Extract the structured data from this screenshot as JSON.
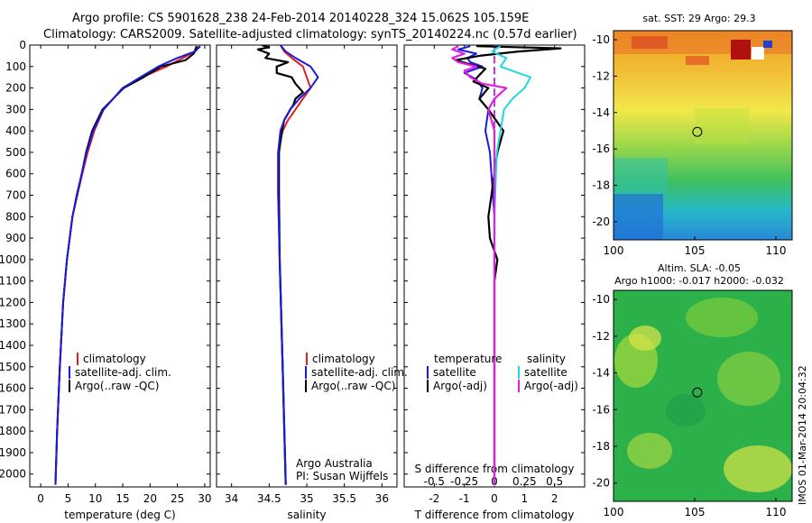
{
  "header": {
    "line1": "Argo profile: CS 5901628_238 24-Feb-2014 20140228_324 15.062S 105.159E",
    "line2": "Climatology: CARS2009. Satellite-adjusted climatology: synTS_20140224.nc (0.57d earlier)"
  },
  "colors": {
    "climatology": "#e02020",
    "satellite": "#1a1ae0",
    "argo": "#000000",
    "sat_salinity": "#22d8e0",
    "argo_salinity": "#e020e0"
  },
  "chart_data": [
    {
      "type": "line",
      "title": "",
      "xlabel": "temperature (deg C)",
      "ylabel": "",
      "xlim": [
        -2,
        31
      ],
      "ylim": [
        2060,
        0
      ],
      "xticks": [
        "0",
        "5",
        "10",
        "15",
        "20",
        "25",
        "30"
      ],
      "yticks": [
        "0",
        "100",
        "200",
        "300",
        "400",
        "500",
        "600",
        "700",
        "800",
        "900",
        "1000",
        "1100",
        "1200",
        "1300",
        "1400",
        "1500",
        "1600",
        "1700",
        "1800",
        "1900",
        "2000"
      ],
      "legend": [
        "climatology",
        "satellite-adj. clim.",
        "Argo(..raw -QC)"
      ],
      "series": [
        {
          "name": "climatology",
          "depth": [
            5,
            30,
            60,
            100,
            150,
            200,
            300,
            400,
            500,
            600,
            700,
            800,
            1000,
            1200,
            1500,
            1800,
            2050
          ],
          "values": [
            28.8,
            28.3,
            26,
            23,
            18.5,
            15,
            11.5,
            9.8,
            8.6,
            7.6,
            6.7,
            5.8,
            4.8,
            4.1,
            3.5,
            3.0,
            2.7
          ]
        },
        {
          "name": "satellite-adj. clim.",
          "depth": [
            5,
            30,
            60,
            100,
            150,
            200,
            300,
            400,
            500,
            600,
            700,
            800,
            1000,
            1200,
            1500,
            1800,
            2050
          ],
          "values": [
            29.2,
            28.2,
            25,
            21.5,
            18.2,
            15,
            11.5,
            9.6,
            8.4,
            7.5,
            6.6,
            5.8,
            4.8,
            4.1,
            3.5,
            3.0,
            2.7
          ]
        },
        {
          "name": "Argo",
          "depth": [
            5,
            40,
            70,
            100,
            150,
            200,
            300,
            400,
            500,
            600,
            700,
            800,
            1000,
            1200,
            1500,
            1800,
            2040
          ],
          "values": [
            28.5,
            28,
            26.5,
            22,
            18.8,
            15.2,
            11.3,
            9.4,
            8.3,
            7.5,
            6.6,
            5.8,
            4.8,
            4.1,
            3.5,
            3.0,
            2.7
          ]
        }
      ]
    },
    {
      "type": "line",
      "xlabel": "salinity",
      "xlim": [
        33.8,
        36.2
      ],
      "ylim": [
        2060,
        0
      ],
      "xticks": [
        "34",
        "34.5",
        "35",
        "35.5",
        "36"
      ],
      "legend": [
        "climatology",
        "satellite-adj. clim.",
        "Argo(..raw -QC)"
      ],
      "notes": [
        "Argo Australia",
        "PI: Susan Wijffels"
      ],
      "series": [
        {
          "name": "climatology",
          "depth": [
            0,
            30,
            60,
            100,
            150,
            200,
            250,
            300,
            350,
            400,
            500,
            700,
            1000,
            1500,
            2050
          ],
          "values": [
            34.65,
            34.7,
            34.8,
            34.95,
            35.0,
            35.05,
            34.95,
            34.85,
            34.75,
            34.68,
            34.62,
            34.62,
            34.64,
            34.68,
            34.72
          ]
        },
        {
          "name": "satellite-adj. clim.",
          "depth": [
            0,
            30,
            60,
            100,
            150,
            200,
            250,
            300,
            350,
            400,
            500,
            700,
            1000,
            1500,
            2050
          ],
          "values": [
            34.65,
            34.72,
            34.85,
            35.05,
            35.15,
            35.05,
            34.9,
            34.78,
            34.7,
            34.65,
            34.62,
            34.62,
            34.64,
            34.68,
            34.72
          ]
        },
        {
          "name": "Argo",
          "depth": [
            0,
            10,
            20,
            40,
            60,
            80,
            100,
            130,
            150,
            180,
            200,
            220,
            250,
            280,
            300,
            350,
            400,
            500,
            700,
            1000,
            1500,
            2050
          ],
          "values": [
            34.4,
            34.5,
            34.35,
            34.5,
            34.45,
            34.75,
            34.6,
            34.6,
            34.8,
            34.85,
            34.9,
            34.95,
            34.85,
            34.82,
            34.78,
            34.7,
            34.67,
            34.63,
            34.63,
            34.64,
            34.68,
            34.72
          ]
        }
      ]
    },
    {
      "type": "line",
      "xlabel": "T difference from climatology",
      "x2label": "S difference from climatology",
      "xlim": [
        -3,
        3
      ],
      "ylim": [
        2060,
        0
      ],
      "xticks": [
        "-2",
        "-1",
        "0",
        "1",
        "2"
      ],
      "x2ticks": [
        "-0.5",
        "-0.25",
        "0",
        "0.25",
        "0.5"
      ],
      "legend_headers": [
        "temperature",
        "salinity"
      ],
      "legend": [
        "satellite",
        "Argo(-adj)",
        "satellite",
        "Argo(-adj)"
      ],
      "series": [
        {
          "name": "T satellite",
          "depth": [
            5,
            20,
            40,
            60,
            80,
            100,
            130,
            160,
            200,
            250,
            300,
            400,
            500,
            800,
            1200,
            2050
          ],
          "values": [
            -0.8,
            -1.2,
            -0.6,
            -0.9,
            -0.8,
            -0.4,
            -1.0,
            -0.6,
            -0.4,
            -0.5,
            -0.2,
            -0.3,
            -0.15,
            0,
            0,
            0
          ]
        },
        {
          "name": "T Argo(-adj)",
          "depth": [
            5,
            15,
            30,
            50,
            70,
            90,
            110,
            140,
            170,
            200,
            250,
            300,
            400,
            500,
            600,
            700,
            800,
            900,
            1000,
            1100,
            1500,
            2050
          ],
          "values": [
            -0.6,
            2.2,
            0.8,
            -0.5,
            -1.3,
            -0.8,
            -0.3,
            -0.5,
            -0.7,
            -0.2,
            -0.5,
            -0.2,
            0.3,
            0.1,
            0,
            -0.1,
            -0.2,
            -0.15,
            0.1,
            0,
            0,
            0
          ]
        },
        {
          "name": "S satellite",
          "depth": [
            5,
            30,
            60,
            100,
            150,
            200,
            250,
            300,
            400,
            500,
            800,
            1200,
            2050
          ],
          "values": [
            0.05,
            -0.02,
            0.1,
            0.05,
            0.3,
            0.25,
            0.15,
            0.08,
            0.05,
            0.02,
            0,
            0,
            0
          ]
        },
        {
          "name": "S Argo(-adj)",
          "depth": [
            5,
            20,
            40,
            60,
            80,
            100,
            120,
            150,
            180,
            200,
            250,
            300,
            400,
            500,
            800,
            1200,
            2050
          ],
          "values": [
            -0.3,
            -0.35,
            -0.25,
            -0.35,
            -0.3,
            -0.15,
            -0.25,
            -0.2,
            -0.1,
            0.1,
            0,
            -0.05,
            0,
            0,
            0,
            0,
            0
          ]
        }
      ]
    },
    {
      "type": "heatmap",
      "title": "sat. SST: 29 Argo: 29.3",
      "xlim": [
        100,
        111
      ],
      "ylim": [
        -21,
        -9.5
      ],
      "xticks": [
        "100",
        "105",
        "110"
      ],
      "yticks": [
        "-10",
        "-12",
        "-14",
        "-16",
        "-18",
        "-20"
      ],
      "marker": {
        "lon": 105.159,
        "lat": -15.062
      }
    },
    {
      "type": "heatmap",
      "title_lines": [
        "Altim. SLA: -0.05",
        "Argo h1000: -0.017 h2000: -0.032"
      ],
      "xlim": [
        100,
        111
      ],
      "ylim": [
        -21,
        -9.5
      ],
      "xticks": [
        "100",
        "105",
        "110"
      ],
      "yticks": [
        "-10",
        "-12",
        "-14",
        "-16",
        "-18",
        "-20"
      ],
      "marker": {
        "lon": 105.159,
        "lat": -15.062
      }
    }
  ],
  "footer": {
    "stamp": "IMOS 01-Mar-2014 20:04:32"
  }
}
